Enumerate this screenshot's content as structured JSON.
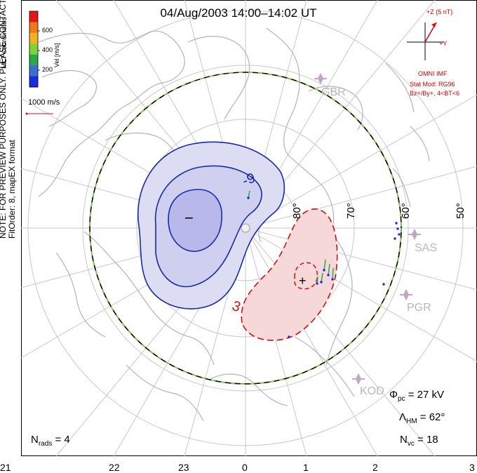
{
  "title": "04/Aug/2003  14:00–14:02 UT",
  "side_note": {
    "line1": "NOTE: FOR PREVIEW PURPOSES ONLY. PLEASE CONTACT VT-SD STAFF FOR VERIFICATION.",
    "line2": "FitOrder: 8, mapEX format"
  },
  "colorbar": {
    "coords_label": "MLT coordinates",
    "vel_label": "Vel [m/s]",
    "ticks": [
      "600",
      "400",
      "200"
    ],
    "colors": [
      "#e8141b",
      "#f07a1a",
      "#f5b21c",
      "#7ed23a",
      "#2aa84a",
      "#3a6fd0",
      "#1a2adf"
    ]
  },
  "scale": {
    "label": "1000 m/s"
  },
  "imf": {
    "z_label": "+Z (5 nT)",
    "y_label": "+Y",
    "omni": "OMNI IMF",
    "stat_mod": "Stat Mod: RG96",
    "conditions": "Bz+/By+, 4<BT<6"
  },
  "radars": [
    "GBR",
    "SAS",
    "PGR",
    "KOD"
  ],
  "latitudes": [
    "80°",
    "70°",
    "60°",
    "50°"
  ],
  "contours": {
    "negative": "-9",
    "positive": "3",
    "min_marker": "−",
    "max_marker": "+"
  },
  "stats": {
    "phi_pc": {
      "symbol": "Φ",
      "sub": "pc",
      "value": "= 27 kV"
    },
    "lambda_hm": {
      "symbol": "Λ",
      "sub": "HM",
      "value": "= 62°"
    },
    "n_vc": {
      "symbol": "N",
      "sub": "vc",
      "value": "= 18"
    },
    "n_rads": {
      "symbol": "N",
      "sub": "rads",
      "value": "= 4"
    }
  },
  "mlt_ticks": [
    "21",
    "22",
    "23",
    "0",
    "1",
    "2",
    "3"
  ]
}
